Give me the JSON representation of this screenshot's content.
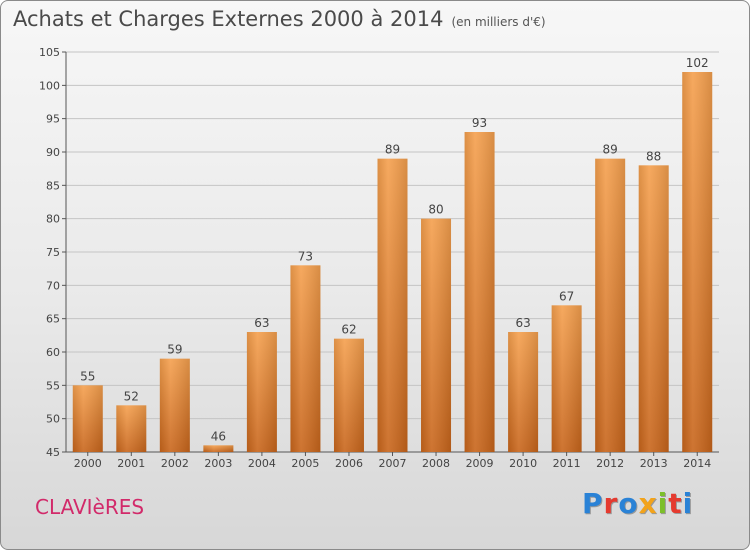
{
  "title": {
    "main": "Achats et Charges Externes 2000 à 2014",
    "unit": "(en milliers d'€)"
  },
  "commune": "CLAVIèRES",
  "logo": {
    "text": "Proxiti",
    "colors": [
      "#2a82d6",
      "#e53a2f",
      "#f2a31b",
      "#7cbf2a"
    ]
  },
  "chart_data": {
    "type": "bar",
    "title": "Achats et Charges Externes 2000 à 2014",
    "subtitle": "(en milliers d'€)",
    "categories": [
      "2000",
      "2001",
      "2002",
      "2003",
      "2004",
      "2005",
      "2006",
      "2007",
      "2008",
      "2009",
      "2010",
      "2011",
      "2012",
      "2013",
      "2014"
    ],
    "values": [
      55,
      52,
      59,
      46,
      63,
      73,
      62,
      89,
      80,
      93,
      63,
      67,
      89,
      88,
      102
    ],
    "ylim": [
      45,
      105
    ],
    "yticks": [
      45,
      50,
      55,
      60,
      65,
      70,
      75,
      80,
      85,
      90,
      95,
      100,
      105
    ],
    "grid": true,
    "bar_color": "#f0922e",
    "bar_color_dark": "#c8651b",
    "xlabel": "",
    "ylabel": ""
  }
}
